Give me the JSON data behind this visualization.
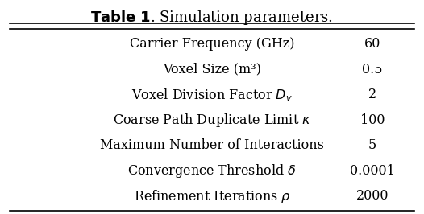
{
  "title_bold": "Table 1",
  "title_normal": ". Simulation parameters.",
  "rows": [
    [
      "Carrier Frequency (GHz)",
      "60"
    ],
    [
      "Voxel Size (m³)",
      "0.5"
    ],
    [
      "Voxel Division Factor $D_v$",
      "2"
    ],
    [
      "Coarse Path Duplicate Limit $\\kappa$",
      "100"
    ],
    [
      "Maximum Number of Interactions",
      "5"
    ],
    [
      "Convergence Threshold $\\delta$",
      "0.0001"
    ],
    [
      "Refinement Iterations $\\rho$",
      "2000"
    ]
  ],
  "bg_color": "#ffffff",
  "text_color": "#000000",
  "title_fontsize": 13,
  "row_fontsize": 11.5,
  "fig_width": 5.26,
  "fig_height": 2.66
}
